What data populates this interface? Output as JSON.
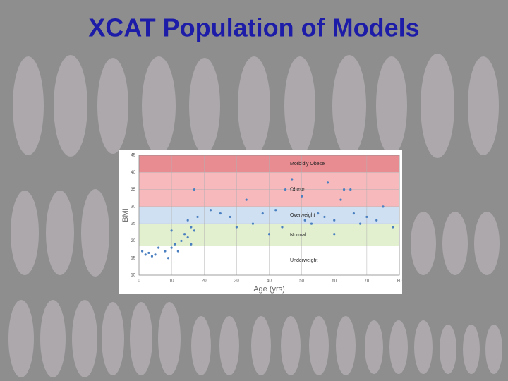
{
  "slide_title": "XCAT Population of Models",
  "chart_data": {
    "type": "scatter",
    "xlabel": "Age (yrs)",
    "ylabel": "BMI",
    "xlim": [
      0,
      80
    ],
    "xticks": [
      0,
      10,
      20,
      30,
      40,
      50,
      60,
      70,
      80
    ],
    "ylim": [
      10,
      45
    ],
    "yticks": [
      10,
      15,
      20,
      25,
      30,
      35,
      40,
      45
    ],
    "grid": true,
    "color": "#4a7fc0",
    "bands": [
      {
        "name": "Morbidly Obese",
        "color": "#e98c92",
        "range": [
          40,
          45
        ]
      },
      {
        "name": "Obese",
        "color": "#f8b9bc",
        "range": [
          30,
          40
        ]
      },
      {
        "name": "Overweight",
        "color": "#cfe0f2",
        "range": [
          25,
          30
        ]
      },
      {
        "name": "Normal",
        "color": "#e2f0cf",
        "range": [
          18.5,
          25
        ]
      },
      {
        "name": "Underweight",
        "color": "#ffffff",
        "range": [
          10,
          18.5
        ]
      }
    ],
    "x": [
      1,
      2,
      3,
      4,
      5,
      6,
      8,
      9,
      10,
      11,
      12,
      13,
      14,
      15,
      16,
      17,
      15,
      16,
      10,
      18,
      17,
      22,
      25,
      28,
      30,
      33,
      35,
      38,
      40,
      42,
      44,
      45,
      47,
      50,
      51,
      53,
      55,
      57,
      58,
      60,
      62,
      63,
      65,
      66,
      68,
      70,
      73,
      75,
      78,
      60
    ],
    "values": [
      17,
      16,
      16.5,
      15.5,
      16,
      18,
      17,
      15,
      18,
      19,
      17,
      20,
      22,
      21,
      19,
      23,
      26,
      24,
      23,
      27,
      35,
      29,
      28,
      27,
      24,
      32,
      25,
      28,
      22,
      29,
      24,
      35,
      38,
      33,
      26,
      25,
      28,
      27,
      37,
      26,
      32,
      35,
      35,
      28,
      25,
      27,
      26,
      30,
      24,
      22
    ]
  }
}
